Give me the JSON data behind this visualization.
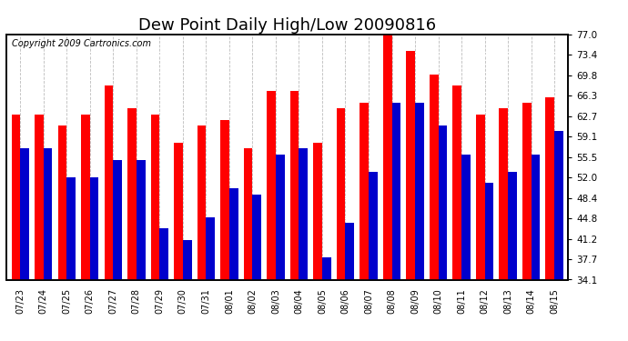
{
  "title": "Dew Point Daily High/Low 20090816",
  "copyright": "Copyright 2009 Cartronics.com",
  "dates": [
    "07/23",
    "07/24",
    "07/25",
    "07/26",
    "07/27",
    "07/28",
    "07/29",
    "07/30",
    "07/31",
    "08/01",
    "08/02",
    "08/03",
    "08/04",
    "08/05",
    "08/06",
    "08/07",
    "08/08",
    "08/09",
    "08/10",
    "08/11",
    "08/12",
    "08/13",
    "08/14",
    "08/15"
  ],
  "highs": [
    63,
    63,
    61,
    63,
    68,
    64,
    63,
    58,
    61,
    62,
    57,
    67,
    67,
    58,
    64,
    65,
    77,
    74,
    70,
    68,
    63,
    64,
    65,
    66
  ],
  "lows": [
    57,
    57,
    52,
    52,
    55,
    55,
    43,
    41,
    45,
    50,
    49,
    56,
    57,
    38,
    44,
    53,
    65,
    65,
    61,
    56,
    51,
    53,
    56,
    60
  ],
  "high_color": "#ff0000",
  "low_color": "#0000cc",
  "bg_color": "#ffffff",
  "plot_bg_color": "#ffffff",
  "grid_color": "#bbbbbb",
  "ylim_min": 34.1,
  "ylim_max": 77.0,
  "yticks": [
    34.1,
    37.7,
    41.2,
    44.8,
    48.4,
    52.0,
    55.5,
    59.1,
    62.7,
    66.3,
    69.8,
    73.4,
    77.0
  ],
  "bar_width": 0.38,
  "title_fontsize": 13,
  "copyright_fontsize": 7,
  "tick_fontsize": 7.5,
  "xlabel_fontsize": 7
}
